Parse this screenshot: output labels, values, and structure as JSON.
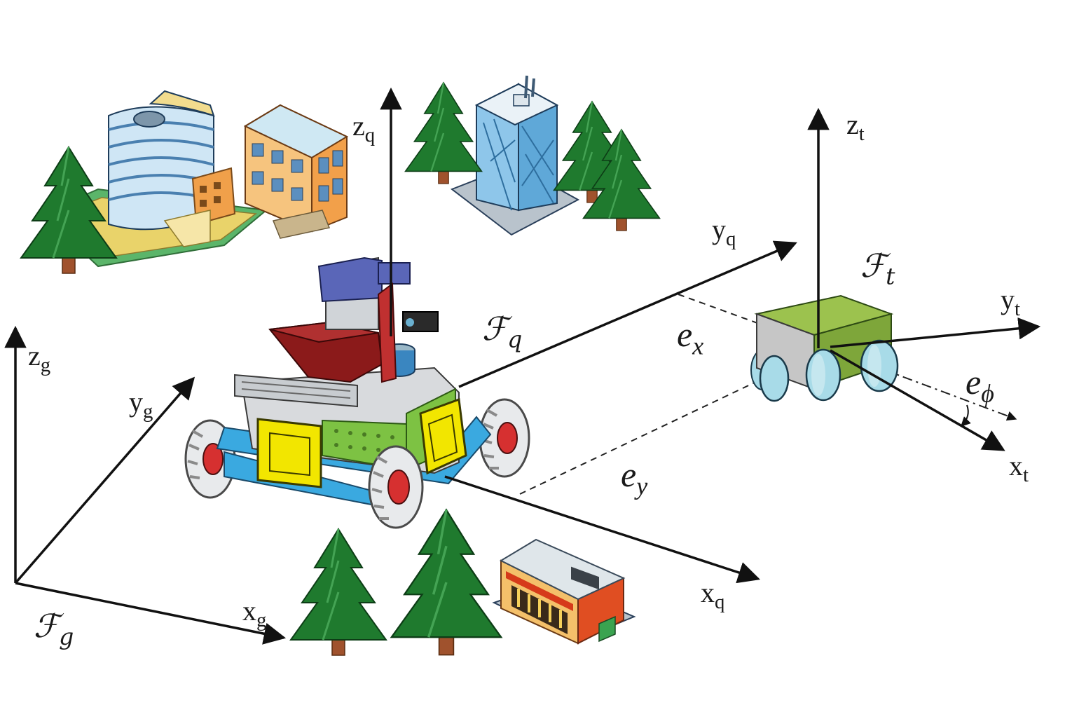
{
  "global_frame": {
    "x_axis": "x",
    "y_axis": "y",
    "z_axis": "z",
    "sub": "g",
    "frame_symbol": "ℱ",
    "frame_sub": "g"
  },
  "robot_frame": {
    "x_axis": "x",
    "y_axis": "y",
    "z_axis": "z",
    "sub": "q",
    "frame_symbol": "ℱ",
    "frame_sub": "q"
  },
  "target_frame": {
    "x_axis": "x",
    "y_axis": "y",
    "z_axis": "z",
    "sub": "t",
    "frame_symbol": "ℱ",
    "frame_sub": "t"
  },
  "errors": {
    "ex": {
      "base": "e",
      "sub": "x"
    },
    "ey": {
      "base": "e",
      "sub": "y"
    },
    "ephi": {
      "base": "e",
      "sub": "ϕ"
    }
  },
  "colors": {
    "axis": "#111111",
    "tree": "#1f7a2e",
    "trunk": "#a0522d",
    "robot_body": "#7dc243",
    "robot_panel": "#f2e600",
    "robot_rail": "#3aa9e0",
    "robot_bin": "#8b1a1a",
    "target_body": "#7ea63a",
    "target_wheel": "#a8dbe8"
  }
}
